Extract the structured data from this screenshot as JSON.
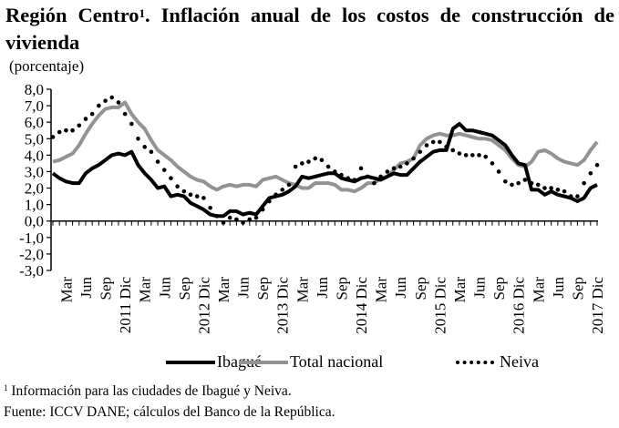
{
  "header": {
    "title_main": "Región Centro",
    "title_sup": "1",
    "title_rest": ". Inflación anual de los costos de construcción de vivienda",
    "unit": "(porcentaje)"
  },
  "footer": {
    "note_sup": "1",
    "note": " Información para las ciudades de Ibagué y Neiva.",
    "source": "Fuente: ICCV DANE; cálculos del Banco de la República."
  },
  "chart_data": {
    "type": "line",
    "title": "Región Centro. Inflación anual de los costos de construcción de vivienda",
    "ylabel": "(porcentaje)",
    "xlabel": "",
    "ylim": [
      -3.0,
      8.0
    ],
    "yticks": [
      "8,0",
      "7,0",
      "6,0",
      "5,0",
      "4,0",
      "3,0",
      "2,0",
      "1,0",
      "0,0",
      "-1,0",
      "-2,0",
      "-3,0"
    ],
    "ytick_values": [
      8,
      7,
      6,
      5,
      4,
      3,
      2,
      1,
      0,
      -1,
      -2,
      -3
    ],
    "x_start": "2011-01",
    "x_end": "2017-12",
    "n_months": 84,
    "xtick_labels": [
      {
        "month_index": 2,
        "label": "Mar"
      },
      {
        "month_index": 5,
        "label": "Jun"
      },
      {
        "month_index": 8,
        "label": "Sep"
      },
      {
        "month_index": 11,
        "label": "2011 Dic"
      },
      {
        "month_index": 14,
        "label": "Mar"
      },
      {
        "month_index": 17,
        "label": "Jun"
      },
      {
        "month_index": 20,
        "label": "Sep"
      },
      {
        "month_index": 23,
        "label": "2012 Dic"
      },
      {
        "month_index": 26,
        "label": "Mar"
      },
      {
        "month_index": 29,
        "label": "Jun"
      },
      {
        "month_index": 32,
        "label": "Sep"
      },
      {
        "month_index": 35,
        "label": "2013 Dic"
      },
      {
        "month_index": 38,
        "label": "Mar"
      },
      {
        "month_index": 41,
        "label": "Jun"
      },
      {
        "month_index": 44,
        "label": "Sep"
      },
      {
        "month_index": 47,
        "label": "2014 Dic"
      },
      {
        "month_index": 50,
        "label": "Mar"
      },
      {
        "month_index": 53,
        "label": "Jun"
      },
      {
        "month_index": 56,
        "label": "Sep"
      },
      {
        "month_index": 59,
        "label": "2015 Dic"
      },
      {
        "month_index": 62,
        "label": "Mar"
      },
      {
        "month_index": 65,
        "label": "Jun"
      },
      {
        "month_index": 68,
        "label": "Sep"
      },
      {
        "month_index": 71,
        "label": "2016 Dic"
      },
      {
        "month_index": 74,
        "label": "Mar"
      },
      {
        "month_index": 77,
        "label": "Jun"
      },
      {
        "month_index": 80,
        "label": "Sep"
      },
      {
        "month_index": 83,
        "label": "2017 Dic"
      }
    ],
    "grid": false,
    "legend_position": "bottom",
    "series": [
      {
        "name": "Ibagué",
        "color": "#000000",
        "style": "solid",
        "values": [
          2.9,
          2.6,
          2.4,
          2.3,
          2.3,
          2.9,
          3.2,
          3.4,
          3.7,
          4.0,
          4.1,
          4.0,
          4.2,
          3.4,
          2.9,
          2.5,
          2.0,
          2.1,
          1.5,
          1.6,
          1.5,
          1.1,
          0.9,
          0.7,
          0.4,
          0.3,
          0.3,
          0.6,
          0.6,
          0.4,
          0.5,
          0.4,
          0.9,
          1.4,
          1.5,
          1.6,
          1.8,
          2.1,
          2.7,
          2.6,
          2.7,
          2.8,
          2.9,
          2.9,
          2.6,
          2.5,
          2.4,
          2.6,
          2.7,
          2.6,
          2.5,
          2.7,
          2.9,
          2.8,
          2.8,
          3.2,
          3.6,
          3.9,
          4.2,
          4.3,
          4.3,
          5.6,
          5.9,
          5.5,
          5.5,
          5.4,
          5.3,
          5.2,
          4.9,
          4.6,
          4.0,
          3.5,
          3.4,
          1.9,
          1.9,
          1.6,
          1.8,
          1.6,
          1.5,
          1.4,
          1.2,
          1.4,
          2.0,
          2.2
        ]
      },
      {
        "name": "Total nacional",
        "color": "#939393",
        "style": "solid",
        "values": [
          3.6,
          3.7,
          3.9,
          4.1,
          4.6,
          5.3,
          5.9,
          6.4,
          6.8,
          6.9,
          6.9,
          7.2,
          6.5,
          6.0,
          5.6,
          4.9,
          4.3,
          4.0,
          3.7,
          3.3,
          3.0,
          2.7,
          2.5,
          2.4,
          2.1,
          1.9,
          2.1,
          2.2,
          2.1,
          2.2,
          2.2,
          2.1,
          2.5,
          2.6,
          2.7,
          2.5,
          2.3,
          2.2,
          2.0,
          2.0,
          2.3,
          2.3,
          2.3,
          2.2,
          1.9,
          1.9,
          1.8,
          2.0,
          2.3,
          2.3,
          2.6,
          2.7,
          3.1,
          3.5,
          3.6,
          3.8,
          4.6,
          5.0,
          5.2,
          5.3,
          5.2,
          5.2,
          5.3,
          5.2,
          5.1,
          5.0,
          5.0,
          4.9,
          4.6,
          4.3,
          3.8,
          3.4,
          3.3,
          3.6,
          4.2,
          4.3,
          4.1,
          3.8,
          3.6,
          3.5,
          3.4,
          3.7,
          4.3,
          4.8
        ]
      },
      {
        "name": "Neiva",
        "color": "#000000",
        "style": "dotted",
        "values": [
          5.1,
          5.4,
          5.5,
          5.5,
          5.8,
          6.2,
          6.5,
          7.0,
          7.3,
          7.5,
          7.2,
          6.5,
          5.9,
          5.0,
          4.5,
          4.2,
          3.6,
          3.1,
          2.6,
          2.1,
          1.8,
          1.6,
          1.5,
          1.4,
          0.8,
          0.3,
          -0.1,
          0.2,
          0.1,
          -0.1,
          0.1,
          0.2,
          0.7,
          1.2,
          1.6,
          1.9,
          2.2,
          3.3,
          3.5,
          3.6,
          3.8,
          3.7,
          3.3,
          3.0,
          2.8,
          2.6,
          2.5,
          3.2,
          2.7,
          2.3,
          2.7,
          3.0,
          3.2,
          3.3,
          3.5,
          3.8,
          4.2,
          4.6,
          4.8,
          4.8,
          4.5,
          4.3,
          4.1,
          4.0,
          4.0,
          4.0,
          3.9,
          3.5,
          3.0,
          2.4,
          2.2,
          2.3,
          2.5,
          2.3,
          2.2,
          2.0,
          2.0,
          1.9,
          1.8,
          1.5,
          1.5,
          2.3,
          2.9,
          3.4
        ]
      }
    ]
  }
}
